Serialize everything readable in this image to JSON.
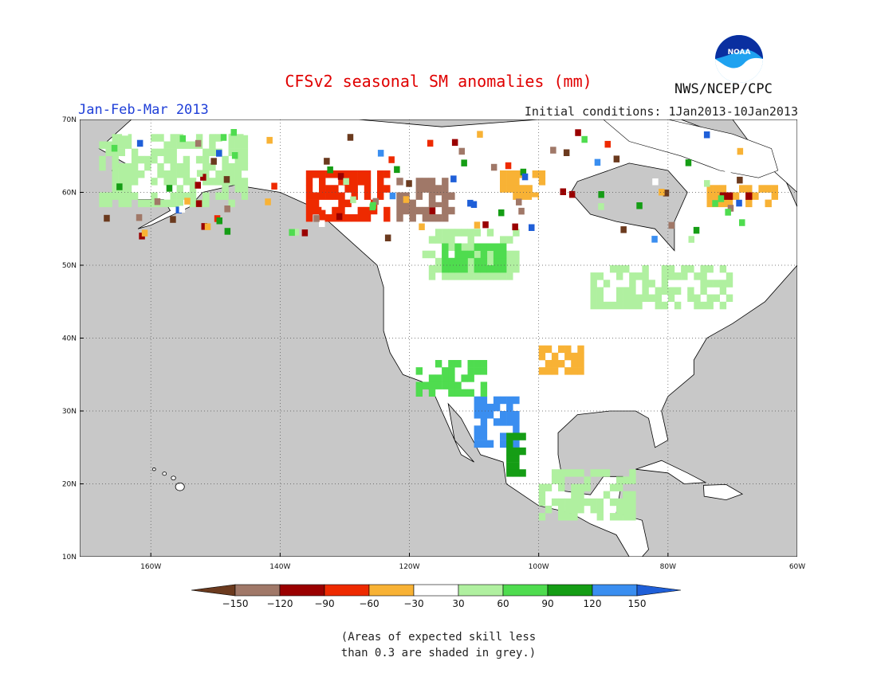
{
  "title": "CFSv2 seasonal SM anomalies (mm)",
  "period": "Jan-Feb-Mar 2013",
  "initial_conditions": "Initial conditions: 1Jan2013-10Jan2013",
  "agency": "NWS/NCEP/CPC",
  "logo_text": "NOAA",
  "note": "(Areas of expected skill less\nthan 0.3 are shaded in grey.)",
  "map": {
    "lat_labels": [
      "70N",
      "60N",
      "50N",
      "40N",
      "30N",
      "20N",
      "10N"
    ],
    "lon_labels": [
      "160W",
      "140W",
      "120W",
      "100W",
      "80W",
      "60W"
    ],
    "lat_range": [
      10,
      70
    ],
    "lon_range": [
      -171,
      -60
    ],
    "ocean_color": "#c8c8c8",
    "land_color": "#ffffff"
  },
  "colorbar": {
    "tick_labels": [
      "-150",
      "-120",
      "-90",
      "-60",
      "-30",
      "30",
      "60",
      "90",
      "120",
      "150"
    ],
    "colors": [
      "#6b3a1e",
      "#a07868",
      "#9a0000",
      "#ee2a00",
      "#f8b235",
      "#ffffff",
      "#b0f0a0",
      "#4fdc4f",
      "#159d15",
      "#3a8ef0",
      "#1f5fd8"
    ]
  },
  "chart_data": {
    "type": "heatmap",
    "title": "CFSv2 seasonal SM anomalies (mm)",
    "subtitle": "Jan-Feb-Mar 2013",
    "units": "mm",
    "legend_bins": [
      {
        "range": "< -150",
        "color": "#6b3a1e"
      },
      {
        "range": "-150 to -120",
        "color": "#a07868"
      },
      {
        "range": "-120 to -90",
        "color": "#9a0000"
      },
      {
        "range": "-90 to -60",
        "color": "#ee2a00"
      },
      {
        "range": "-60 to -30",
        "color": "#f8b235"
      },
      {
        "range": "-30 to 30",
        "color": "#ffffff"
      },
      {
        "range": "30 to 60",
        "color": "#b0f0a0"
      },
      {
        "range": "60 to 90",
        "color": "#4fdc4f"
      },
      {
        "range": "90 to 120",
        "color": "#159d15"
      },
      {
        "range": "120 to 150",
        "color": "#3a8ef0"
      },
      {
        "range": "> 150",
        "color": "#1f5fd8"
      }
    ],
    "regions": [
      {
        "lon": [
          -136,
          -123
        ],
        "lat": [
          56,
          63
        ],
        "bin": "-90 to -60"
      },
      {
        "lon": [
          -122,
          -113
        ],
        "lat": [
          56,
          62
        ],
        "bin": "-150 to -120"
      },
      {
        "lon": [
          -106,
          -99
        ],
        "lat": [
          59,
          63
        ],
        "bin": "-60 to -30"
      },
      {
        "lon": [
          -118,
          -103
        ],
        "lat": [
          48,
          55
        ],
        "bin": "30 to 60"
      },
      {
        "lon": [
          -115,
          -105
        ],
        "lat": [
          49,
          53
        ],
        "bin": "60 to 90"
      },
      {
        "lon": [
          -110,
          -103
        ],
        "lat": [
          25,
          32
        ],
        "bin": "120 to 150"
      },
      {
        "lon": [
          -105,
          -102
        ],
        "lat": [
          21,
          27
        ],
        "bin": "90 to 120"
      },
      {
        "lon": [
          -100,
          -93
        ],
        "lat": [
          35,
          39
        ],
        "bin": "-60 to -30"
      },
      {
        "lon": [
          -119,
          -108
        ],
        "lat": [
          32,
          37
        ],
        "bin": "60 to 90"
      },
      {
        "lon": [
          -74,
          -63
        ],
        "lat": [
          58,
          61
        ],
        "bin": "-60 to -30"
      },
      {
        "lon": [
          -72,
          -67
        ],
        "lat": [
          59,
          60
        ],
        "bin": "-120 to -90"
      },
      {
        "lon": [
          -168,
          -145
        ],
        "lat": [
          58,
          68
        ],
        "bin": "30 to 60"
      },
      {
        "lon": [
          -92,
          -70
        ],
        "lat": [
          44,
          50
        ],
        "bin": "30 to 60"
      },
      {
        "lon": [
          -100,
          -85
        ],
        "lat": [
          15,
          22
        ],
        "bin": "30 to 60"
      }
    ]
  }
}
